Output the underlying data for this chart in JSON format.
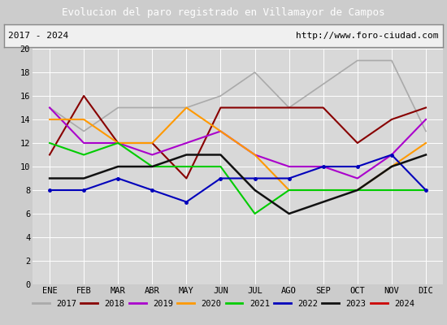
{
  "title": "Evolucion del paro registrado en Villamayor de Campos",
  "subtitle_left": "2017 - 2024",
  "subtitle_right": "http://www.foro-ciudad.com",
  "months": [
    "ENE",
    "FEB",
    "MAR",
    "ABR",
    "MAY",
    "JUN",
    "JUL",
    "AGO",
    "SEP",
    "OCT",
    "NOV",
    "DIC"
  ],
  "ylim": [
    0,
    20
  ],
  "yticks": [
    0,
    2,
    4,
    6,
    8,
    10,
    12,
    14,
    16,
    18,
    20
  ],
  "series": {
    "2017": [
      15,
      13,
      15,
      15,
      15,
      16,
      18,
      15,
      17,
      19,
      19,
      13
    ],
    "2018": [
      11,
      16,
      12,
      12,
      9,
      15,
      15,
      15,
      15,
      12,
      14,
      15
    ],
    "2019": [
      15,
      12,
      12,
      11,
      12,
      13,
      11,
      10,
      10,
      9,
      11,
      14
    ],
    "2020": [
      14,
      14,
      12,
      12,
      15,
      13,
      11,
      8,
      8,
      8,
      10,
      12
    ],
    "2021": [
      12,
      11,
      12,
      10,
      10,
      10,
      6,
      8,
      8,
      8,
      8,
      8
    ],
    "2022": [
      8,
      8,
      9,
      8,
      7,
      9,
      9,
      9,
      10,
      10,
      11,
      8
    ],
    "2023": [
      9,
      9,
      10,
      10,
      11,
      11,
      8,
      6,
      7,
      8,
      10,
      11
    ],
    "2024": [
      8,
      null,
      null,
      null,
      null,
      null,
      null,
      null,
      null,
      null,
      null,
      null
    ]
  },
  "colors": {
    "2017": "#aaaaaa",
    "2018": "#880000",
    "2019": "#aa00cc",
    "2020": "#ff9900",
    "2021": "#00cc00",
    "2022": "#0000bb",
    "2023": "#111111",
    "2024": "#cc0000"
  },
  "linewidths": {
    "2017": 1.2,
    "2018": 1.5,
    "2019": 1.5,
    "2020": 1.5,
    "2021": 1.5,
    "2022": 1.5,
    "2023": 1.8,
    "2024": 1.8
  },
  "bg_color": "#cccccc",
  "plot_bg_color": "#d8d8d8",
  "title_bg_color": "#4a8fd4",
  "title_color": "#ffffff",
  "border_color": "#4a8fd4",
  "sub_bg_color": "#f0f0f0",
  "legend_bg_color": "#e8e8e8"
}
